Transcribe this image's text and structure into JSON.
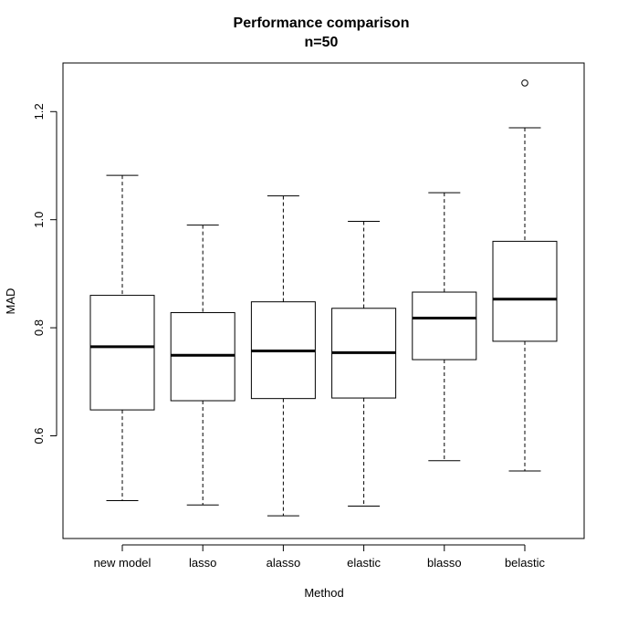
{
  "chart_data": {
    "type": "boxplot",
    "title": "Performance comparison",
    "subtitle": "n=50",
    "xlabel": "Method",
    "ylabel": "MAD",
    "ylim": [
      0.41,
      1.29
    ],
    "yticks": [
      0.6,
      0.8,
      1.0,
      1.2
    ],
    "ytick_labels": [
      "0.6",
      "0.8",
      "1.0",
      "1.2"
    ],
    "categories": [
      "new model",
      "lasso",
      "alasso",
      "elastic",
      "blasso",
      "belastic"
    ],
    "boxes": [
      {
        "name": "new model",
        "whisker_low": 0.48,
        "q1": 0.648,
        "median": 0.765,
        "q3": 0.86,
        "whisker_high": 1.082,
        "outliers": []
      },
      {
        "name": "lasso",
        "whisker_low": 0.472,
        "q1": 0.665,
        "median": 0.749,
        "q3": 0.828,
        "whisker_high": 0.99,
        "outliers": []
      },
      {
        "name": "alasso",
        "whisker_low": 0.452,
        "q1": 0.669,
        "median": 0.757,
        "q3": 0.848,
        "whisker_high": 1.044,
        "outliers": []
      },
      {
        "name": "elastic",
        "whisker_low": 0.47,
        "q1": 0.67,
        "median": 0.754,
        "q3": 0.836,
        "whisker_high": 0.997,
        "outliers": []
      },
      {
        "name": "blasso",
        "whisker_low": 0.554,
        "q1": 0.741,
        "median": 0.818,
        "q3": 0.866,
        "whisker_high": 1.05,
        "outliers": []
      },
      {
        "name": "belastic",
        "whisker_low": 0.535,
        "q1": 0.775,
        "median": 0.853,
        "q3": 0.96,
        "whisker_high": 1.17,
        "outliers": [
          1.253
        ]
      }
    ],
    "grid": false,
    "legend": "none"
  }
}
